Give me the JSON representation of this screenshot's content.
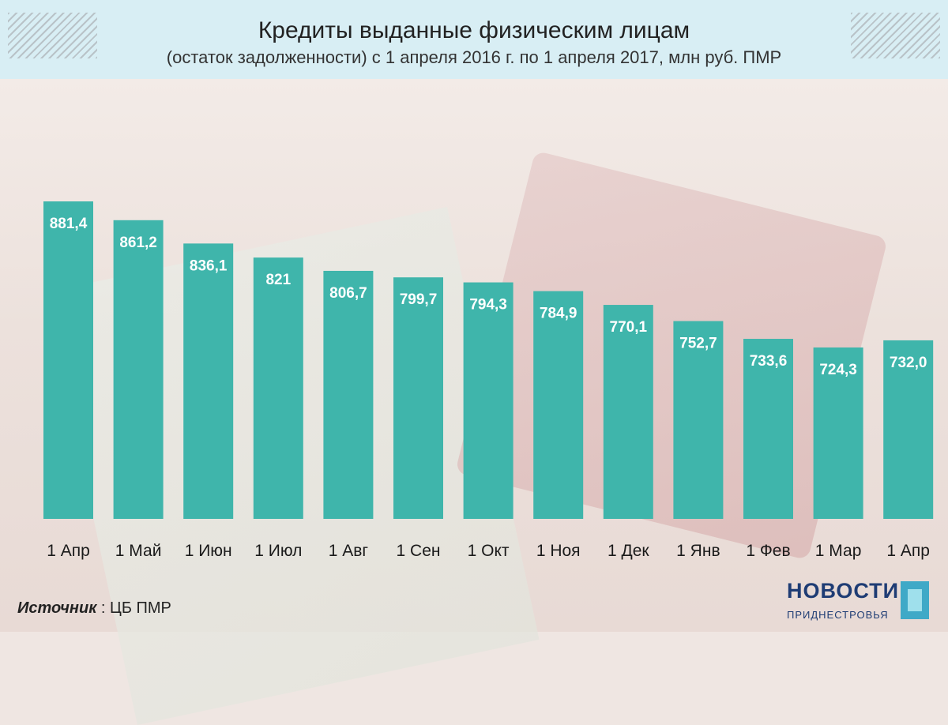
{
  "header": {
    "title": "Кредиты выданные физическим лицам",
    "subtitle": "(остаток задолженности) с 1 апреля 2016 г. по 1 апреля 2017, млн руб. ПМР"
  },
  "footer": {
    "source_label": "Источник",
    "source_value": ": ЦБ ПМР",
    "logo_main": "НОВОСТИ",
    "logo_sub": "ПРИДНЕСТРОВЬЯ"
  },
  "colors": {
    "bar": "#3fb5ab",
    "header_bg": "#d8eef4"
  },
  "chart_data": {
    "type": "bar",
    "title": "Кредиты выданные физическим лицам",
    "subtitle": "(остаток задолженности) с 1 апреля 2016 г. по 1 апреля 2017, млн руб. ПМР",
    "categories": [
      "1 Апр",
      "1 Май",
      "1 Июн",
      "1 Июл",
      "1 Авг",
      "1 Сен",
      "1 Окт",
      "1 Ноя",
      "1 Дек",
      "1 Янв",
      "1 Фев",
      "1 Мар",
      "1 Апр"
    ],
    "values": [
      881.4,
      861.2,
      836.1,
      821,
      806.7,
      799.7,
      794.3,
      784.9,
      770.1,
      752.7,
      733.6,
      724.3,
      732.0
    ],
    "value_labels": [
      "881,4",
      "861,2",
      "836,1",
      "821",
      "806,7",
      "799,7",
      "794,3",
      "784,9",
      "770,1",
      "752,7",
      "733,6",
      "724,3",
      "732,0"
    ],
    "xlabel": "",
    "ylabel": "",
    "grid": false,
    "legend": "none"
  }
}
